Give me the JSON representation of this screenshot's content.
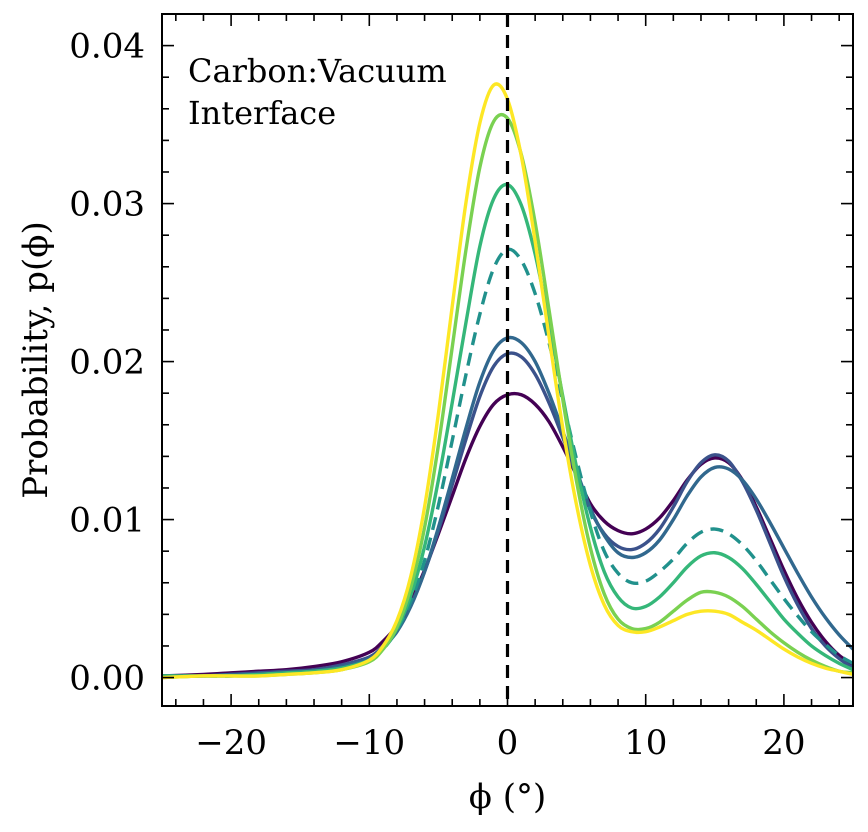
{
  "chart_data": {
    "type": "line",
    "annotation": [
      "Carbon:Vacuum",
      "Interface"
    ],
    "xlabel": "ϕ (°)",
    "ylabel": "Probability, p(ϕ)",
    "xlim": [
      -25,
      25
    ],
    "ylim": [
      -0.0018,
      0.042
    ],
    "x_ticks": [
      -20,
      -10,
      0,
      10,
      20
    ],
    "x_tick_labels": [
      "−20",
      "−10",
      "0",
      "10",
      "20"
    ],
    "y_ticks": [
      0.0,
      0.01,
      0.02,
      0.03,
      0.04
    ],
    "y_tick_labels": [
      "0.00",
      "0.01",
      "0.02",
      "0.03",
      "0.04"
    ],
    "grid": false,
    "legend": "none",
    "reference_line": {
      "x": 0,
      "style": "dashed",
      "color": "#000000"
    },
    "x": [
      -25,
      -22,
      -20,
      -18,
      -16,
      -14,
      -12,
      -10,
      -9,
      -8,
      -7,
      -6,
      -5,
      -4,
      -3,
      -2,
      -1,
      0,
      1,
      2,
      3,
      4,
      5,
      6,
      7,
      8,
      9,
      10,
      11,
      12,
      13,
      14,
      15,
      16,
      17,
      18,
      19,
      20,
      21,
      22,
      23,
      24,
      25
    ],
    "series": [
      {
        "color": "#440154",
        "style": "solid",
        "values": [
          0.0001,
          0.0002,
          0.0003,
          0.0004,
          0.0005,
          0.0007,
          0.001,
          0.0016,
          0.0023,
          0.0033,
          0.0048,
          0.0068,
          0.0091,
          0.0115,
          0.0139,
          0.0159,
          0.0173,
          0.0179,
          0.0179,
          0.0173,
          0.0162,
          0.0146,
          0.0128,
          0.011,
          0.0099,
          0.0093,
          0.0091,
          0.0094,
          0.0101,
          0.0112,
          0.0125,
          0.0135,
          0.0139,
          0.0136,
          0.0125,
          0.0108,
          0.0088,
          0.0068,
          0.005,
          0.0035,
          0.0023,
          0.0014,
          0.0008
        ]
      },
      {
        "color": "#3b528b",
        "style": "solid",
        "values": [
          0.0001,
          0.0001,
          0.0002,
          0.0003,
          0.0004,
          0.0005,
          0.0008,
          0.0013,
          0.002,
          0.003,
          0.0046,
          0.0067,
          0.0093,
          0.0122,
          0.0151,
          0.0178,
          0.0197,
          0.0205,
          0.0203,
          0.0192,
          0.0174,
          0.0152,
          0.0128,
          0.0106,
          0.0091,
          0.0083,
          0.0081,
          0.0085,
          0.0094,
          0.0108,
          0.0124,
          0.0136,
          0.0141,
          0.0137,
          0.0124,
          0.0106,
          0.0085,
          0.0064,
          0.0046,
          0.0031,
          0.002,
          0.0012,
          0.0006
        ]
      },
      {
        "color": "#31688e",
        "style": "solid",
        "values": [
          0.0001,
          0.0001,
          0.0002,
          0.0002,
          0.0003,
          0.0004,
          0.0007,
          0.0012,
          0.0019,
          0.0029,
          0.0045,
          0.0067,
          0.0095,
          0.0126,
          0.0158,
          0.0187,
          0.0207,
          0.0215,
          0.0212,
          0.02,
          0.018,
          0.0156,
          0.0131,
          0.0107,
          0.009,
          0.0079,
          0.0076,
          0.0079,
          0.0087,
          0.01,
          0.0115,
          0.0127,
          0.0133,
          0.0132,
          0.0125,
          0.0113,
          0.0098,
          0.0082,
          0.0066,
          0.0051,
          0.0038,
          0.0027,
          0.0018
        ]
      },
      {
        "color": "#21918c",
        "style": "dashed",
        "values": [
          0.0001,
          0.0001,
          0.0001,
          0.0002,
          0.0003,
          0.0004,
          0.0006,
          0.0011,
          0.0018,
          0.003,
          0.0048,
          0.0074,
          0.0109,
          0.015,
          0.0192,
          0.023,
          0.0259,
          0.0271,
          0.0264,
          0.0243,
          0.0212,
          0.0175,
          0.0138,
          0.0105,
          0.008,
          0.0066,
          0.006,
          0.0061,
          0.0067,
          0.0075,
          0.0085,
          0.0092,
          0.0094,
          0.0091,
          0.0084,
          0.0074,
          0.0062,
          0.005,
          0.0039,
          0.0029,
          0.0021,
          0.0014,
          0.0009
        ]
      },
      {
        "color": "#35b779",
        "style": "solid",
        "values": [
          0.0001,
          0.0001,
          0.0001,
          0.0002,
          0.0003,
          0.0004,
          0.0006,
          0.0011,
          0.0018,
          0.0031,
          0.0052,
          0.0083,
          0.0125,
          0.0174,
          0.0225,
          0.0273,
          0.0303,
          0.0312,
          0.0299,
          0.0268,
          0.0225,
          0.0178,
          0.0133,
          0.0095,
          0.0067,
          0.0051,
          0.0044,
          0.0045,
          0.0051,
          0.006,
          0.007,
          0.0077,
          0.0079,
          0.0076,
          0.0069,
          0.0059,
          0.0048,
          0.0037,
          0.0028,
          0.002,
          0.0014,
          0.0009,
          0.0005
        ]
      },
      {
        "color": "#7ad151",
        "style": "solid",
        "values": [
          0.0,
          0.0001,
          0.0001,
          0.0001,
          0.0002,
          0.0003,
          0.0005,
          0.001,
          0.0018,
          0.0032,
          0.0057,
          0.0095,
          0.0147,
          0.0209,
          0.0271,
          0.0323,
          0.0352,
          0.0354,
          0.0331,
          0.0288,
          0.0233,
          0.0176,
          0.0124,
          0.0082,
          0.0053,
          0.0037,
          0.0031,
          0.0031,
          0.0035,
          0.0042,
          0.0049,
          0.0054,
          0.0054,
          0.0051,
          0.0045,
          0.0037,
          0.0029,
          0.0022,
          0.0016,
          0.0011,
          0.0007,
          0.0004,
          0.0003
        ]
      },
      {
        "color": "#fde725",
        "style": "solid",
        "values": [
          0.0,
          0.0001,
          0.0001,
          0.0001,
          0.0002,
          0.0003,
          0.0005,
          0.0011,
          0.002,
          0.0036,
          0.0064,
          0.0108,
          0.0167,
          0.0235,
          0.0301,
          0.0351,
          0.0375,
          0.0366,
          0.033,
          0.0276,
          0.0216,
          0.0158,
          0.0109,
          0.0071,
          0.0046,
          0.0033,
          0.0029,
          0.0029,
          0.0032,
          0.0036,
          0.004,
          0.0042,
          0.0042,
          0.004,
          0.0035,
          0.003,
          0.0024,
          0.0018,
          0.0013,
          0.0009,
          0.0006,
          0.0004,
          0.0002
        ]
      }
    ]
  }
}
